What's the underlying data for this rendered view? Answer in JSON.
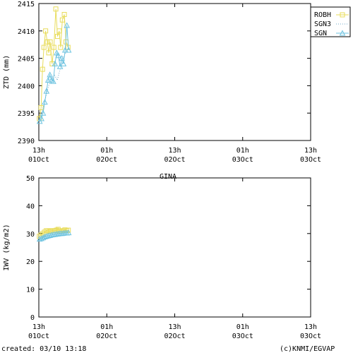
{
  "chart_data": [
    {
      "type": "line",
      "ylabel": "ZTD (mm)",
      "ylim": [
        2390,
        2415
      ],
      "yticks": [
        2390,
        2395,
        2400,
        2405,
        2410,
        2415
      ],
      "xtick_labels": [
        [
          "13h",
          "01Oct"
        ],
        [
          "01h",
          "02Oct"
        ],
        [
          "13h",
          "02Oct"
        ],
        [
          "01h",
          "03Oct"
        ],
        [
          "13h",
          "03Oct"
        ]
      ],
      "xlim_hours": [
        0,
        96
      ],
      "legend_position": "top-right",
      "series": [
        {
          "name": "ROBH",
          "color": "#e8dc5a",
          "marker": "square",
          "linestyle": "solid",
          "x": [
            0.2,
            0.8,
            1.3,
            1.8,
            2.4,
            3.0,
            3.5,
            4.0,
            4.7,
            5.3,
            6.0,
            6.6,
            7.2,
            7.7,
            8.3,
            9.0,
            9.6,
            10.3
          ],
          "y": [
            2394,
            2396,
            2403,
            2407,
            2410,
            2408,
            2406,
            2408,
            2404,
            2407,
            2414,
            2409,
            2410,
            2407,
            2412,
            2413,
            2408,
            2407
          ]
        },
        {
          "name": "SGN3",
          "color": "#6fa8c8",
          "marker": "none",
          "linestyle": "dotted",
          "x": [
            0.5,
            1.5,
            2.5,
            3.5,
            4.5,
            5.5,
            6.5,
            7.5,
            8.5,
            9.5
          ],
          "y": [
            2394,
            2396,
            2398,
            2400,
            2401,
            2402,
            2401,
            2403,
            2405,
            2406
          ]
        },
        {
          "name": "SGN_",
          "color": "#6ec3e0",
          "marker": "triangle",
          "linestyle": "solid",
          "x": [
            0.3,
            0.9,
            1.5,
            2.1,
            2.7,
            3.3,
            3.9,
            4.5,
            5.1,
            5.7,
            6.3,
            6.9,
            7.5,
            8.1,
            8.7,
            9.3,
            9.9,
            10.5
          ],
          "y": [
            2393.5,
            2394,
            2395,
            2397,
            2399,
            2401,
            2402,
            2401,
            2400.8,
            2404,
            2406,
            2405.5,
            2403.5,
            2405,
            2404,
            2406.5,
            2411,
            2406.5
          ]
        }
      ]
    },
    {
      "type": "line",
      "title": "GINA",
      "ylabel": "IWV (kg/m2)",
      "ylim": [
        0,
        50
      ],
      "yticks": [
        0,
        10,
        20,
        30,
        40,
        50
      ],
      "xtick_labels": [
        [
          "13h",
          "01Oct"
        ],
        [
          "01h",
          "02Oct"
        ],
        [
          "13h",
          "02Oct"
        ],
        [
          "01h",
          "03Oct"
        ],
        [
          "13h",
          "03Oct"
        ]
      ],
      "xlim_hours": [
        0,
        96
      ],
      "series": [
        {
          "name": "ROBH",
          "color": "#e8dc5a",
          "marker": "square",
          "linestyle": "solid",
          "x": [
            0.2,
            0.8,
            1.4,
            2.0,
            2.6,
            3.2,
            3.8,
            4.4,
            5.0,
            5.6,
            6.2,
            6.8,
            7.4,
            8.0,
            8.6,
            9.2,
            9.8,
            10.4
          ],
          "y": [
            29,
            29.5,
            30,
            30.5,
            31,
            31,
            30.8,
            31,
            31,
            31,
            31.2,
            31.5,
            31,
            30.8,
            31,
            31.3,
            31,
            31.2
          ]
        },
        {
          "name": "SGN3",
          "color": "#6fa8c8",
          "marker": "none",
          "linestyle": "dotted",
          "x": [
            0.5,
            2.0,
            3.5,
            5.0,
            6.5,
            8.0,
            9.5
          ],
          "y": [
            28.5,
            29,
            29.3,
            29.6,
            29.8,
            30,
            30.2
          ]
        },
        {
          "name": "SGN_",
          "color": "#6ec3e0",
          "marker": "triangle",
          "linestyle": "solid",
          "x": [
            0.3,
            0.9,
            1.5,
            2.1,
            2.7,
            3.3,
            3.9,
            4.5,
            5.1,
            5.7,
            6.3,
            6.9,
            7.5,
            8.1,
            8.7,
            9.3,
            9.9,
            10.5
          ],
          "y": [
            28,
            28.2,
            28.5,
            28.8,
            29,
            29.2,
            29.3,
            29.5,
            29.6,
            29.7,
            29.8,
            29.9,
            30,
            30,
            30.1,
            30.2,
            30.2,
            30.3
          ]
        }
      ]
    }
  ],
  "footer": {
    "created": "created: 03/10 13:18",
    "credit": "(c)KNMI/EGVAP"
  },
  "colors": {
    "frame": "#000000",
    "background": "#ffffff"
  }
}
